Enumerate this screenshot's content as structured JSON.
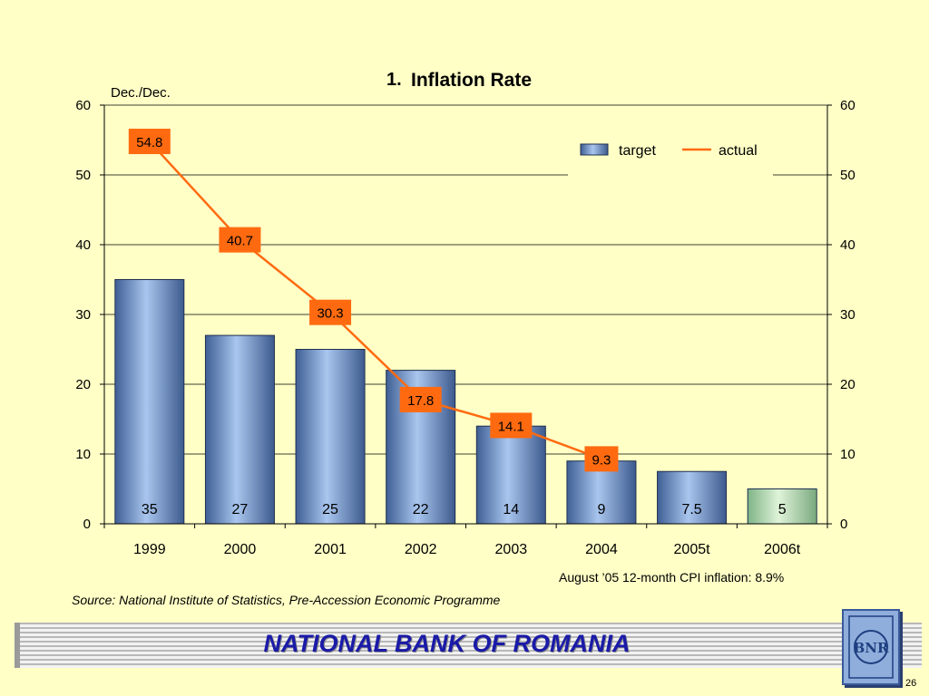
{
  "chart_data": {
    "type": "bar",
    "title_number": "1.",
    "title": "Inflation Rate",
    "ylabel": "Dec./Dec.",
    "categories": [
      "1999",
      "2000",
      "2001",
      "2002",
      "2003",
      "2004",
      "2005t",
      "2006t"
    ],
    "ylim": [
      0,
      60
    ],
    "yticks": [
      0,
      10,
      20,
      30,
      40,
      50,
      60
    ],
    "grid": true,
    "legend_position": "top-right",
    "series": [
      {
        "name": "target",
        "kind": "bar",
        "values": [
          35,
          27,
          25,
          22,
          14,
          9,
          7.5,
          5
        ],
        "color": "#6f93c8",
        "highlight_color": "#b8e0b0",
        "highlight_index": 7
      },
      {
        "name": "actual",
        "kind": "line",
        "values": [
          54.8,
          40.7,
          30.3,
          17.8,
          14.1,
          9.3,
          null,
          null
        ],
        "color": "#ff6a10"
      }
    ]
  },
  "note": "August ’05 12-month CPI inflation: 8.9%",
  "source": "Source: National Institute of Statistics, Pre-Accession Economic Programme",
  "footer": {
    "title": "NATIONAL BANK OF ROMANIA",
    "logo_text": "BNR",
    "page_number": "26"
  },
  "colors": {
    "background": "#ffffc6",
    "footer_title": "#1a1aa8",
    "label_box": "#ff6a10"
  }
}
